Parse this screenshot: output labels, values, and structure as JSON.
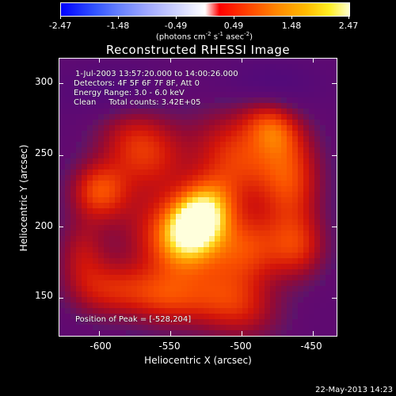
{
  "colorbar": {
    "ticks": [
      "-2.47",
      "-1.48",
      "-0.49",
      "0.49",
      "1.48",
      "2.47"
    ],
    "units_prefix": "(photons cm",
    "units_exp1": "-2",
    "units_mid1": " s",
    "units_exp2": "-1",
    "units_mid2": " asec",
    "units_exp3": "-2",
    "units_suffix": ")"
  },
  "title": "Reconstructed RHESSI Image",
  "info": {
    "line1": "1-Jul-2003 13:57:20.000 to 14:00:26.000",
    "line2": "Detectors: 4F 5F 6F 7F 8F, Att 0",
    "line3": "Energy Range: 3.0 - 6.0 keV",
    "line4": "Clean     Total counts: 3.42E+05",
    "peak": "Position of Peak = [-528,204]"
  },
  "axes": {
    "xlabel": "Heliocentric X (arcsec)",
    "ylabel": "Heliocentric Y (arcsec)",
    "xticks": [
      "-600",
      "-550",
      "-500",
      "-450"
    ],
    "yticks": [
      "300",
      "250",
      "200",
      "150"
    ]
  },
  "footer": "22-May-2013 14:23",
  "chart_data": {
    "type": "heatmap",
    "title": "Reconstructed RHESSI Image",
    "xlabel": "Heliocentric X (arcsec)",
    "ylabel": "Heliocentric Y (arcsec)",
    "xlim": [
      -628,
      -433
    ],
    "ylim": [
      123,
      318
    ],
    "zlim": [
      -2.47,
      2.47
    ],
    "peak": [
      -528,
      204
    ],
    "sources": [
      {
        "x": -530,
        "y": 205,
        "amp": 2.47,
        "sx": 14,
        "sy": 20,
        "rot": -35
      },
      {
        "x": -545,
        "y": 190,
        "amp": 1.2,
        "sx": 30,
        "sy": 22,
        "rot": -30
      },
      {
        "x": -600,
        "y": 225,
        "amp": 1.3,
        "sx": 14,
        "sy": 14,
        "rot": 0
      },
      {
        "x": -570,
        "y": 255,
        "amp": 1.25,
        "sx": 22,
        "sy": 18,
        "rot": -40
      },
      {
        "x": -500,
        "y": 250,
        "amp": 1.25,
        "sx": 25,
        "sy": 20,
        "rot": -30
      },
      {
        "x": -478,
        "y": 270,
        "amp": 1.05,
        "sx": 15,
        "sy": 12,
        "rot": -40
      },
      {
        "x": -465,
        "y": 230,
        "amp": 1.1,
        "sx": 15,
        "sy": 25,
        "rot": 0
      },
      {
        "x": -495,
        "y": 185,
        "amp": 1.1,
        "sx": 18,
        "sy": 18,
        "rot": -30
      },
      {
        "x": -505,
        "y": 145,
        "amp": 1.05,
        "sx": 22,
        "sy": 16,
        "rot": -20
      },
      {
        "x": -555,
        "y": 150,
        "amp": 1.1,
        "sx": 22,
        "sy": 14,
        "rot": -10
      },
      {
        "x": -595,
        "y": 155,
        "amp": 0.85,
        "sx": 18,
        "sy": 14,
        "rot": 0
      },
      {
        "x": -612,
        "y": 180,
        "amp": 0.75,
        "sx": 12,
        "sy": 18,
        "rot": 0
      },
      {
        "x": -460,
        "y": 185,
        "amp": 0.95,
        "sx": 14,
        "sy": 16,
        "rot": 0
      },
      {
        "x": -590,
        "y": 295,
        "amp": -0.45,
        "sx": 25,
        "sy": 12,
        "rot": 0
      },
      {
        "x": -480,
        "y": 300,
        "amp": -0.4,
        "sx": 25,
        "sy": 12,
        "rot": 0
      }
    ]
  }
}
